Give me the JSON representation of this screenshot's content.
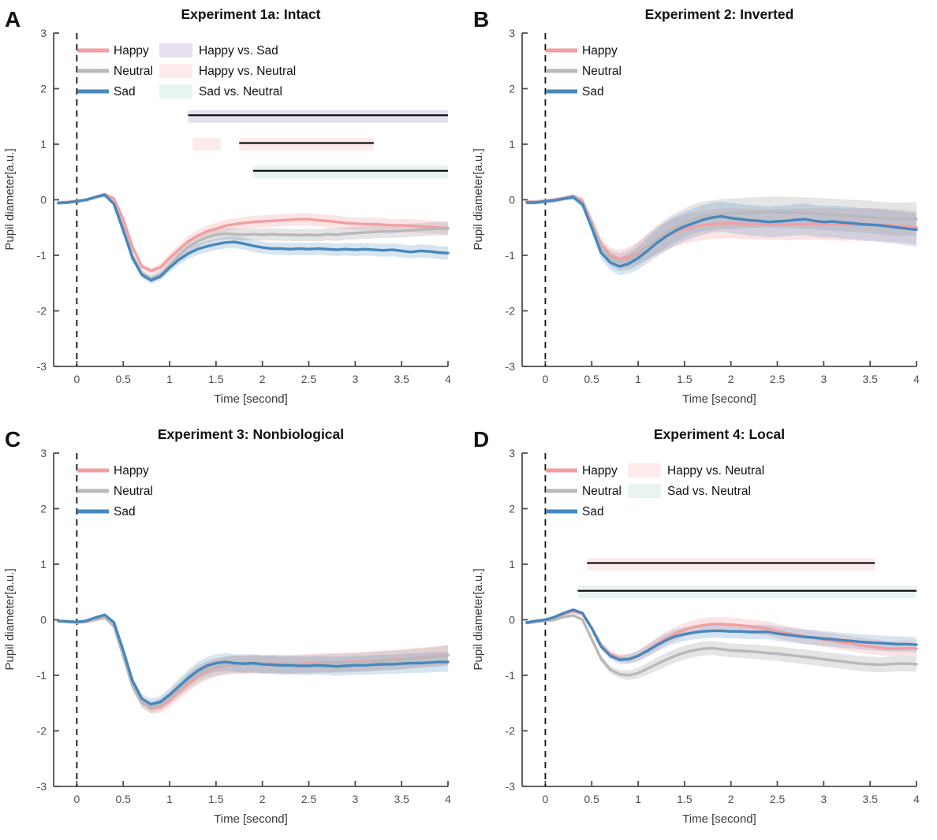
{
  "colors": {
    "happy": "#F29FA2",
    "neutral": "#B9B9BB",
    "sad": "#4987BC",
    "happy_band": "rgba(242,159,162,0.28)",
    "neutral_band": "rgba(160,160,166,0.28)",
    "sad_band": "rgba(73,135,188,0.22)",
    "happy_vs_sad": "#E5DFEF",
    "happy_vs_neutral": "#FDEBEB",
    "sad_vs_neutral": "#E9F3F2",
    "axis": "#4f4f4f",
    "sig_line": "#111111",
    "event_line": "#111111"
  },
  "axes": {
    "xlabel": "Time [second]",
    "ylabel": "Pupil diameter[a.u.]",
    "xlim": [
      -0.25,
      4
    ],
    "ylim": [
      -3,
      3
    ],
    "xticks": [
      0,
      0.5,
      1,
      1.5,
      2,
      2.5,
      3,
      3.5,
      4
    ],
    "xtick_labels": [
      "0",
      "0.5",
      "1",
      "1.5",
      "2",
      "2.5",
      "3",
      "3.5",
      "4"
    ],
    "yticks": [
      -3,
      -2,
      -1,
      0,
      1,
      2,
      3
    ],
    "ytick_labels": [
      "-3",
      "-2",
      "-1",
      "0",
      "1",
      "2",
      "3"
    ],
    "grid": false
  },
  "time_grid": [
    -0.2,
    -0.1,
    0,
    0.1,
    0.2,
    0.3,
    0.4,
    0.5,
    0.6,
    0.7,
    0.8,
    0.9,
    1,
    1.1,
    1.2,
    1.3,
    1.4,
    1.5,
    1.6,
    1.7,
    1.8,
    1.9,
    2,
    2.1,
    2.2,
    2.3,
    2.4,
    2.5,
    2.6,
    2.7,
    2.8,
    2.9,
    3,
    3.1,
    3.2,
    3.3,
    3.4,
    3.5,
    3.6,
    3.7,
    3.8,
    3.9,
    4
  ],
  "chart_data": [
    {
      "type": "line",
      "panel_letter": "A",
      "title": "Experiment 1a: Intact",
      "event_line_x": 0,
      "band_halfwidth": 0.12,
      "series": [
        {
          "name": "Happy",
          "color_key": "happy",
          "values": [
            -0.05,
            -0.04,
            -0.02,
            0.0,
            0.05,
            0.1,
            0.02,
            -0.35,
            -0.85,
            -1.2,
            -1.28,
            -1.22,
            -1.05,
            -0.9,
            -0.75,
            -0.65,
            -0.57,
            -0.52,
            -0.47,
            -0.44,
            -0.42,
            -0.4,
            -0.39,
            -0.38,
            -0.37,
            -0.36,
            -0.35,
            -0.35,
            -0.37,
            -0.38,
            -0.4,
            -0.42,
            -0.43,
            -0.44,
            -0.44,
            -0.45,
            -0.46,
            -0.46,
            -0.47,
            -0.48,
            -0.49,
            -0.5,
            -0.51
          ]
        },
        {
          "name": "Neutral",
          "color_key": "neutral",
          "values": [
            -0.06,
            -0.05,
            -0.03,
            -0.01,
            0.04,
            0.08,
            -0.05,
            -0.5,
            -1.0,
            -1.32,
            -1.42,
            -1.35,
            -1.18,
            -1.0,
            -0.85,
            -0.75,
            -0.68,
            -0.63,
            -0.61,
            -0.62,
            -0.63,
            -0.62,
            -0.63,
            -0.62,
            -0.63,
            -0.63,
            -0.64,
            -0.63,
            -0.64,
            -0.62,
            -0.63,
            -0.61,
            -0.6,
            -0.59,
            -0.58,
            -0.57,
            -0.57,
            -0.56,
            -0.55,
            -0.54,
            -0.53,
            -0.52,
            -0.52
          ]
        },
        {
          "name": "Sad",
          "color_key": "sad",
          "values": [
            -0.06,
            -0.05,
            -0.03,
            0.0,
            0.05,
            0.09,
            -0.08,
            -0.55,
            -1.05,
            -1.35,
            -1.45,
            -1.38,
            -1.22,
            -1.08,
            -0.97,
            -0.89,
            -0.84,
            -0.8,
            -0.77,
            -0.76,
            -0.79,
            -0.83,
            -0.86,
            -0.88,
            -0.88,
            -0.89,
            -0.88,
            -0.89,
            -0.88,
            -0.89,
            -0.9,
            -0.89,
            -0.9,
            -0.89,
            -0.9,
            -0.91,
            -0.9,
            -0.92,
            -0.94,
            -0.92,
            -0.93,
            -0.95,
            -0.96
          ]
        }
      ],
      "sig_bars": [
        {
          "label": "Happy vs. Sad",
          "color_key": "happy_vs_sad",
          "y": 1.5,
          "segments": [
            {
              "from": 1.2,
              "to": 4.0,
              "line": true
            }
          ]
        },
        {
          "label": "Happy vs. Neutral",
          "color_key": "happy_vs_neutral",
          "y": 1.0,
          "segments": [
            {
              "from": 1.25,
              "to": 1.55,
              "line": false
            },
            {
              "from": 1.75,
              "to": 3.2,
              "line": true
            }
          ]
        },
        {
          "label": "Sad vs. Neutral",
          "color_key": "sad_vs_neutral",
          "y": 0.5,
          "segments": [
            {
              "from": 1.9,
              "to": 4.0,
              "line": true
            }
          ]
        }
      ],
      "legend_patches": [
        {
          "label": "Happy vs. Sad",
          "color_key": "happy_vs_sad"
        },
        {
          "label": "Happy vs. Neutral",
          "color_key": "happy_vs_neutral"
        },
        {
          "label": "Sad vs. Neutral",
          "color_key": "sad_vs_neutral"
        }
      ]
    },
    {
      "type": "line",
      "panel_letter": "B",
      "title": "Experiment 2: Inverted",
      "event_line_x": 0,
      "band_halfwidth": 0.3,
      "series": [
        {
          "name": "Happy",
          "color_key": "happy",
          "values": [
            -0.04,
            -0.04,
            -0.02,
            0.0,
            0.03,
            0.06,
            -0.02,
            -0.4,
            -0.8,
            -1.0,
            -1.06,
            -1.03,
            -0.95,
            -0.85,
            -0.74,
            -0.65,
            -0.58,
            -0.53,
            -0.49,
            -0.46,
            -0.44,
            -0.43,
            -0.42,
            -0.43,
            -0.44,
            -0.44,
            -0.45,
            -0.44,
            -0.45,
            -0.44,
            -0.44,
            -0.43,
            -0.44,
            -0.44,
            -0.45,
            -0.44,
            -0.45,
            -0.44,
            -0.45,
            -0.46,
            -0.47,
            -0.48,
            -0.5
          ]
        },
        {
          "name": "Neutral",
          "color_key": "neutral",
          "values": [
            -0.05,
            -0.04,
            -0.03,
            -0.01,
            0.02,
            0.05,
            -0.05,
            -0.45,
            -0.85,
            -1.05,
            -1.12,
            -1.08,
            -0.98,
            -0.85,
            -0.72,
            -0.6,
            -0.5,
            -0.42,
            -0.35,
            -0.3,
            -0.28,
            -0.26,
            -0.25,
            -0.24,
            -0.23,
            -0.23,
            -0.22,
            -0.22,
            -0.23,
            -0.23,
            -0.24,
            -0.25,
            -0.26,
            -0.27,
            -0.28,
            -0.29,
            -0.3,
            -0.31,
            -0.33,
            -0.34,
            -0.35,
            -0.34,
            -0.35
          ]
        },
        {
          "name": "Sad",
          "color_key": "sad",
          "values": [
            -0.05,
            -0.05,
            -0.03,
            -0.01,
            0.02,
            0.05,
            -0.08,
            -0.5,
            -0.95,
            -1.13,
            -1.2,
            -1.15,
            -1.05,
            -0.92,
            -0.78,
            -0.66,
            -0.56,
            -0.48,
            -0.42,
            -0.36,
            -0.32,
            -0.3,
            -0.33,
            -0.35,
            -0.37,
            -0.38,
            -0.4,
            -0.39,
            -0.38,
            -0.36,
            -0.35,
            -0.38,
            -0.4,
            -0.39,
            -0.41,
            -0.42,
            -0.44,
            -0.45,
            -0.46,
            -0.48,
            -0.5,
            -0.52,
            -0.54
          ]
        }
      ],
      "sig_bars": [],
      "legend_patches": []
    },
    {
      "type": "line",
      "panel_letter": "C",
      "title": "Experiment 3: Nonbiological",
      "event_line_x": 0,
      "band_halfwidth": 0.18,
      "series": [
        {
          "name": "Happy",
          "color_key": "happy",
          "values": [
            -0.02,
            -0.04,
            -0.05,
            -0.04,
            0.0,
            0.04,
            -0.1,
            -0.6,
            -1.15,
            -1.48,
            -1.6,
            -1.57,
            -1.45,
            -1.3,
            -1.15,
            -1.02,
            -0.93,
            -0.87,
            -0.83,
            -0.81,
            -0.8,
            -0.8,
            -0.8,
            -0.79,
            -0.79,
            -0.8,
            -0.79,
            -0.78,
            -0.78,
            -0.77,
            -0.77,
            -0.76,
            -0.76,
            -0.75,
            -0.74,
            -0.73,
            -0.72,
            -0.71,
            -0.7,
            -0.68,
            -0.67,
            -0.65,
            -0.63
          ]
        },
        {
          "name": "Neutral",
          "color_key": "neutral",
          "values": [
            -0.03,
            -0.04,
            -0.05,
            -0.03,
            0.01,
            0.05,
            -0.12,
            -0.65,
            -1.2,
            -1.5,
            -1.58,
            -1.53,
            -1.4,
            -1.25,
            -1.1,
            -0.98,
            -0.9,
            -0.85,
            -0.82,
            -0.8,
            -0.81,
            -0.8,
            -0.81,
            -0.8,
            -0.81,
            -0.81,
            -0.8,
            -0.8,
            -0.79,
            -0.79,
            -0.78,
            -0.78,
            -0.77,
            -0.76,
            -0.75,
            -0.74,
            -0.73,
            -0.72,
            -0.7,
            -0.69,
            -0.67,
            -0.66,
            -0.64
          ]
        },
        {
          "name": "Sad",
          "color_key": "sad",
          "values": [
            -0.02,
            -0.03,
            -0.04,
            -0.02,
            0.04,
            0.09,
            -0.05,
            -0.55,
            -1.1,
            -1.42,
            -1.52,
            -1.48,
            -1.35,
            -1.2,
            -1.05,
            -0.92,
            -0.83,
            -0.78,
            -0.76,
            -0.78,
            -0.79,
            -0.78,
            -0.8,
            -0.81,
            -0.82,
            -0.82,
            -0.83,
            -0.83,
            -0.82,
            -0.83,
            -0.84,
            -0.83,
            -0.82,
            -0.82,
            -0.81,
            -0.8,
            -0.8,
            -0.79,
            -0.78,
            -0.78,
            -0.77,
            -0.76,
            -0.76
          ]
        }
      ],
      "sig_bars": [],
      "legend_patches": []
    },
    {
      "type": "line",
      "panel_letter": "D",
      "title": "Experiment 4: Local",
      "event_line_x": 0,
      "band_halfwidth": 0.14,
      "series": [
        {
          "name": "Happy",
          "color_key": "happy",
          "values": [
            -0.05,
            -0.03,
            0.0,
            0.04,
            0.1,
            0.15,
            0.1,
            -0.15,
            -0.45,
            -0.62,
            -0.69,
            -0.7,
            -0.65,
            -0.55,
            -0.44,
            -0.33,
            -0.25,
            -0.18,
            -0.13,
            -0.1,
            -0.08,
            -0.08,
            -0.09,
            -0.1,
            -0.12,
            -0.14,
            -0.16,
            -0.2,
            -0.24,
            -0.27,
            -0.3,
            -0.33,
            -0.36,
            -0.38,
            -0.41,
            -0.43,
            -0.46,
            -0.48,
            -0.5,
            -0.52,
            -0.52,
            -0.51,
            -0.52
          ]
        },
        {
          "name": "Neutral",
          "color_key": "neutral",
          "values": [
            -0.06,
            -0.04,
            -0.02,
            0.0,
            0.05,
            0.08,
            0.0,
            -0.35,
            -0.7,
            -0.9,
            -0.98,
            -1.0,
            -0.96,
            -0.88,
            -0.8,
            -0.72,
            -0.65,
            -0.59,
            -0.55,
            -0.52,
            -0.51,
            -0.53,
            -0.55,
            -0.56,
            -0.57,
            -0.58,
            -0.6,
            -0.61,
            -0.63,
            -0.65,
            -0.67,
            -0.69,
            -0.71,
            -0.73,
            -0.75,
            -0.77,
            -0.79,
            -0.8,
            -0.81,
            -0.8,
            -0.79,
            -0.79,
            -0.8
          ]
        },
        {
          "name": "Sad",
          "color_key": "sad",
          "values": [
            -0.05,
            -0.02,
            0.0,
            0.05,
            0.12,
            0.18,
            0.12,
            -0.15,
            -0.48,
            -0.65,
            -0.72,
            -0.71,
            -0.65,
            -0.56,
            -0.46,
            -0.37,
            -0.3,
            -0.26,
            -0.23,
            -0.21,
            -0.2,
            -0.2,
            -0.21,
            -0.21,
            -0.22,
            -0.22,
            -0.22,
            -0.25,
            -0.27,
            -0.29,
            -0.31,
            -0.32,
            -0.34,
            -0.35,
            -0.37,
            -0.38,
            -0.4,
            -0.41,
            -0.42,
            -0.43,
            -0.44,
            -0.44,
            -0.45
          ]
        }
      ],
      "sig_bars": [
        {
          "label": "Happy vs. Neutral",
          "color_key": "happy_vs_neutral",
          "y": 1.0,
          "segments": [
            {
              "from": 0.45,
              "to": 3.55,
              "line": true
            }
          ]
        },
        {
          "label": "Sad vs. Neutral",
          "color_key": "sad_vs_neutral",
          "y": 0.5,
          "segments": [
            {
              "from": 0.35,
              "to": 4.0,
              "line": true
            }
          ]
        }
      ],
      "legend_patches": [
        {
          "label": "Happy vs. Neutral",
          "color_key": "happy_vs_neutral"
        },
        {
          "label": "Sad vs. Neutral",
          "color_key": "sad_vs_neutral"
        }
      ]
    }
  ]
}
